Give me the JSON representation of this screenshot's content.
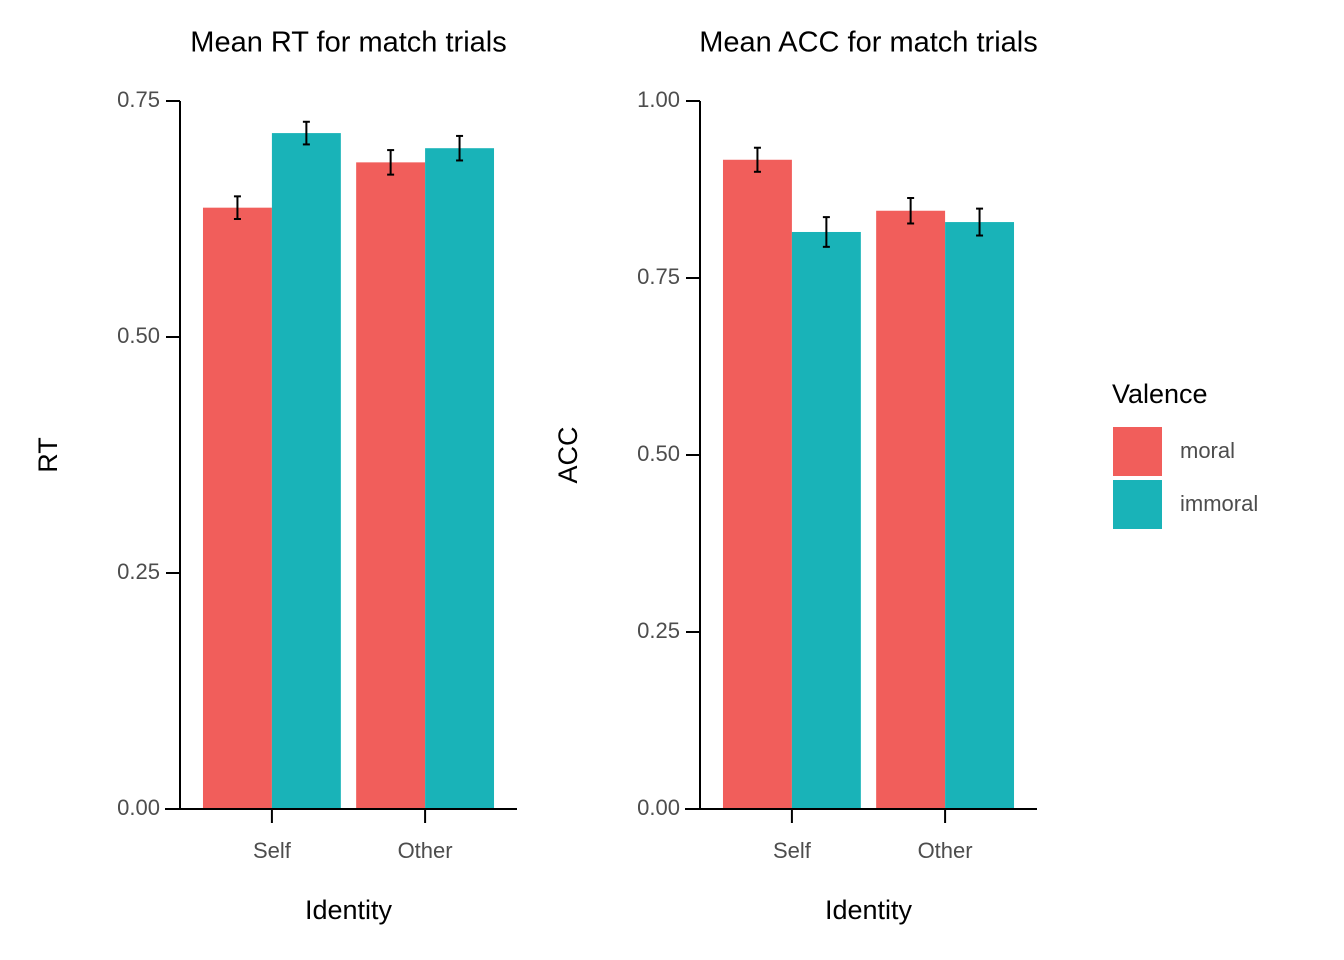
{
  "chart_data": [
    {
      "type": "bar",
      "title": "Mean RT for match trials",
      "x_label": "Identity",
      "y_label": "RT",
      "categories": [
        "Self",
        "Other"
      ],
      "series": [
        {
          "name": "moral",
          "color": "#f15e5b",
          "values": [
            0.637,
            0.685
          ],
          "errors": [
            0.012,
            0.013
          ]
        },
        {
          "name": "immoral",
          "color": "#19b3b8",
          "values": [
            0.716,
            0.7
          ],
          "errors": [
            0.012,
            0.013
          ]
        }
      ],
      "ylim": [
        0,
        0.75
      ],
      "yticks": [
        {
          "value": 0,
          "label": "0.00"
        },
        {
          "value": 0.25,
          "label": "0.25"
        },
        {
          "value": 0.5,
          "label": "0.50"
        },
        {
          "value": 0.75,
          "label": "0.75"
        }
      ]
    },
    {
      "type": "bar",
      "title": "Mean ACC for match trials",
      "x_label": "Identity",
      "y_label": "ACC",
      "categories": [
        "Self",
        "Other"
      ],
      "series": [
        {
          "name": "moral",
          "color": "#f15e5b",
          "values": [
            0.917,
            0.845
          ],
          "errors": [
            0.017,
            0.018
          ]
        },
        {
          "name": "immoral",
          "color": "#19b3b8",
          "values": [
            0.815,
            0.829
          ],
          "errors": [
            0.021,
            0.019
          ]
        }
      ],
      "ylim": [
        0,
        1
      ],
      "yticks": [
        {
          "value": 0,
          "label": "0.00"
        },
        {
          "value": 0.25,
          "label": "0.25"
        },
        {
          "value": 0.5,
          "label": "0.50"
        },
        {
          "value": 0.75,
          "label": "0.75"
        },
        {
          "value": 1,
          "label": "1.00"
        }
      ],
      "legend_title": "Valence"
    }
  ]
}
